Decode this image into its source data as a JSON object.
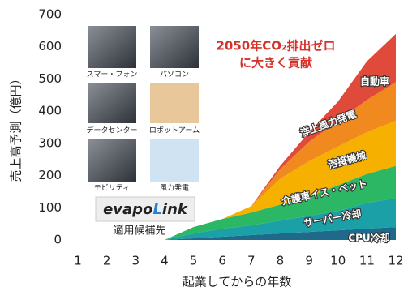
{
  "chart_data": {
    "type": "stacked_area",
    "y_label": "売上高予測（億円）",
    "x_label": "起業してからの年数",
    "annotation": [
      "2050年CO₂排出ゼロ",
      "に大きく貢献"
    ],
    "x": [
      4,
      5,
      6,
      7,
      8,
      9,
      10,
      11,
      12
    ],
    "series": [
      {
        "name": "CPU冷却",
        "color": "#1f6a8a",
        "values": [
          0,
          5,
          10,
          15,
          20,
          25,
          30,
          35,
          40
        ]
      },
      {
        "name": "サーバー冷却",
        "color": "#1aa0a6",
        "values": [
          0,
          15,
          25,
          30,
          40,
          50,
          60,
          80,
          90
        ]
      },
      {
        "name": "介護車イス・ベット",
        "color": "#2cb765",
        "values": [
          0,
          20,
          30,
          40,
          50,
          60,
          80,
          90,
          100
        ]
      },
      {
        "name": "溶接機械",
        "color": "#f5b000",
        "values": [
          0,
          0,
          0,
          20,
          80,
          110,
          120,
          130,
          140
        ]
      },
      {
        "name": "洋上風力発電",
        "color": "#f08a1e",
        "values": [
          0,
          0,
          0,
          0,
          30,
          60,
          80,
          100,
          120
        ]
      },
      {
        "name": "自動車",
        "color": "#df4a3b",
        "values": [
          0,
          0,
          0,
          0,
          10,
          30,
          60,
          120,
          150
        ]
      }
    ],
    "xlim": [
      1,
      12
    ],
    "xticks": [
      1,
      2,
      3,
      4,
      5,
      6,
      7,
      8,
      9,
      10,
      11,
      12
    ],
    "ylim": [
      0,
      700
    ],
    "yticks": [
      0,
      100,
      200,
      300,
      400,
      500,
      600,
      700
    ],
    "applications": {
      "items": [
        "スマー・フォン",
        "パソコン",
        "データセンター",
        "ロボットアーム",
        "モビリティ",
        "風力発電"
      ],
      "logo": [
        "evapo",
        "L",
        "ink"
      ],
      "caption": "適用候補先"
    }
  }
}
